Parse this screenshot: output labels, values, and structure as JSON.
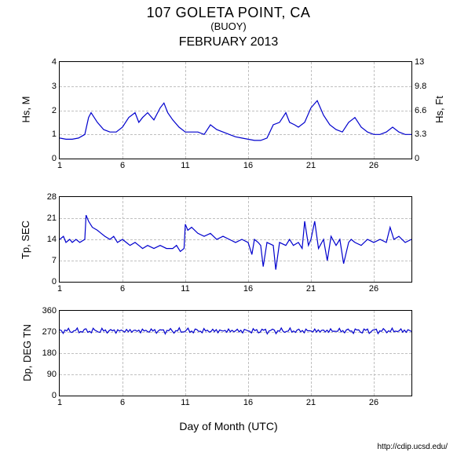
{
  "header": {
    "main": "107 GOLETA POINT, CA",
    "sub": "(BUOY)",
    "month": "FEBRUARY 2013"
  },
  "xaxis": {
    "label": "Day of Month (UTC)",
    "min": 1,
    "max": 29,
    "ticks": [
      1,
      6,
      11,
      16,
      21,
      26
    ]
  },
  "plot1": {
    "type": "line",
    "ylabel": "Hs, M",
    "y2label": "Hs, Ft",
    "ymin": 0,
    "ymax": 4,
    "yticks": [
      0,
      1,
      2,
      3,
      4
    ],
    "y2ticks_vals": [
      0,
      1,
      2,
      3,
      4
    ],
    "y2ticks_labels": [
      "0",
      "3.3",
      "6.6",
      "9.8",
      "13"
    ],
    "line_color": "#0000cd",
    "grid_color": "#c0c0c0",
    "data_x": [
      1,
      1.5,
      2,
      2.5,
      3,
      3.3,
      3.5,
      4,
      4.5,
      5,
      5.5,
      6,
      6.5,
      7,
      7.3,
      7.6,
      8,
      8.5,
      9,
      9.3,
      9.6,
      10,
      10.5,
      11,
      11.5,
      12,
      12.5,
      13,
      13.5,
      14,
      14.5,
      15,
      15.5,
      16,
      16.5,
      17,
      17.5,
      18,
      18.5,
      19,
      19.3,
      19.7,
      20,
      20.5,
      21,
      21.5,
      22,
      22.5,
      23,
      23.5,
      24,
      24.5,
      25,
      25.5,
      26,
      26.5,
      27,
      27.5,
      28,
      28.5,
      29
    ],
    "data_y": [
      0.85,
      0.8,
      0.8,
      0.85,
      1.0,
      1.7,
      1.9,
      1.5,
      1.2,
      1.1,
      1.1,
      1.3,
      1.7,
      1.9,
      1.5,
      1.7,
      1.9,
      1.6,
      2.1,
      2.3,
      1.9,
      1.6,
      1.3,
      1.1,
      1.1,
      1.1,
      1.0,
      1.4,
      1.2,
      1.1,
      1.0,
      0.9,
      0.85,
      0.8,
      0.75,
      0.75,
      0.85,
      1.4,
      1.5,
      1.9,
      1.5,
      1.4,
      1.3,
      1.5,
      2.1,
      2.4,
      1.8,
      1.4,
      1.2,
      1.1,
      1.5,
      1.7,
      1.3,
      1.1,
      1.0,
      1.0,
      1.1,
      1.3,
      1.1,
      1.0,
      1.0
    ]
  },
  "plot2": {
    "type": "line",
    "ylabel": "Tp, SEC",
    "ymin": 0,
    "ymax": 28,
    "yticks": [
      0,
      7,
      14,
      21,
      28
    ],
    "line_color": "#0000cd",
    "grid_color": "#c0c0c0",
    "data_x": [
      1,
      1.3,
      1.5,
      1.8,
      2,
      2.3,
      2.6,
      3,
      3.1,
      3.3,
      3.6,
      4,
      4.3,
      4.6,
      5,
      5.3,
      5.6,
      6,
      6.3,
      6.6,
      7,
      7.3,
      7.6,
      8,
      8.5,
      9,
      9.5,
      10,
      10.3,
      10.6,
      10.9,
      11,
      11.2,
      11.5,
      12,
      12.5,
      13,
      13.5,
      14,
      14.5,
      15,
      15.5,
      16,
      16.3,
      16.5,
      16.8,
      17,
      17.2,
      17.5,
      18,
      18.2,
      18.5,
      19,
      19.3,
      19.6,
      20,
      20.3,
      20.5,
      20.8,
      21,
      21.3,
      21.6,
      22,
      22.3,
      22.6,
      23,
      23.3,
      23.6,
      24,
      24.2,
      24.5,
      25,
      25.5,
      26,
      26.5,
      27,
      27.3,
      27.6,
      28,
      28.5,
      29
    ],
    "data_y": [
      14,
      15,
      13,
      14,
      13,
      14,
      13,
      14,
      22,
      20,
      18,
      17,
      16,
      15,
      14,
      15,
      13,
      14,
      13,
      12,
      13,
      12,
      11,
      12,
      11,
      12,
      11,
      11,
      12,
      10,
      11,
      19,
      17,
      18,
      16,
      15,
      16,
      14,
      15,
      14,
      13,
      14,
      13,
      9,
      14,
      13,
      12,
      5,
      13,
      12,
      4,
      13,
      12,
      14,
      12,
      13,
      11,
      20,
      12,
      14,
      20,
      11,
      14,
      7,
      15,
      12,
      14,
      6,
      13,
      14,
      13,
      12,
      14,
      13,
      14,
      13,
      18,
      14,
      15,
      13,
      14
    ]
  },
  "plot3": {
    "type": "line",
    "ylabel": "Dp, DEG TN",
    "ymin": 0,
    "ymax": 360,
    "yticks": [
      0,
      90,
      180,
      270,
      360
    ],
    "line_color": "#0000cd",
    "grid_color": "#c0c0c0",
    "mean": 275,
    "noise": 10
  },
  "footer": "http://cdip.ucsd.edu/"
}
